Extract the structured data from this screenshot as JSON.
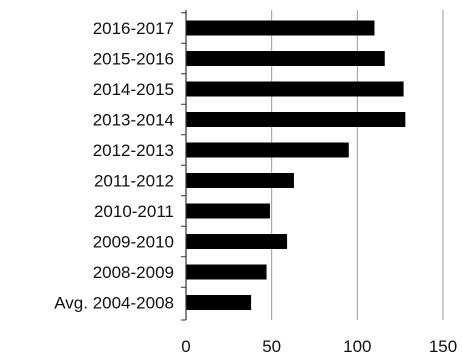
{
  "chart_data": {
    "type": "bar",
    "orientation": "horizontal",
    "categories": [
      "2016-2017",
      "2015-2016",
      "2014-2015",
      "2013-2014",
      "2012-2013",
      "2011-2012",
      "2010-2011",
      "2009-2010",
      "2008-2009",
      "Avg. 2004-2008"
    ],
    "values": [
      110,
      116,
      127,
      128,
      95,
      63,
      49,
      59,
      47,
      38
    ],
    "title": "",
    "xlabel": "",
    "ylabel": "",
    "xlim": [
      0,
      150
    ],
    "x_ticks": [
      0,
      50,
      100,
      150
    ],
    "x_tick_labels": [
      "0",
      "50",
      "100",
      "150"
    ],
    "grid": "vertical",
    "legend": "none",
    "bar_color": "#000000",
    "grid_color": "#9a9a9a",
    "axis_color": "#333333"
  }
}
